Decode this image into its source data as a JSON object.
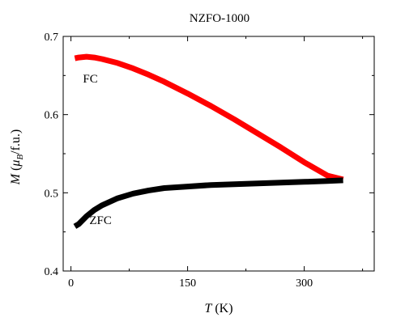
{
  "chart_data": {
    "type": "line",
    "title": "NZFO-1000",
    "xlabel": {
      "symbol": "T",
      "unit": " (K)"
    },
    "ylabel": {
      "symbol": "M",
      "open": " (",
      "mu": "μ",
      "sub": "B",
      "unit": "/f.u.)"
    },
    "xlim": [
      -10,
      390
    ],
    "ylim": [
      0.4,
      0.7
    ],
    "xticks": [
      0,
      150,
      300
    ],
    "yticks": [
      0.4,
      0.5,
      0.6,
      0.7
    ],
    "grid": false,
    "annotations": [
      {
        "text": "FC",
        "x": 25,
        "y": 0.641
      },
      {
        "text": "ZFC",
        "x": 38,
        "y": 0.46
      }
    ],
    "series": [
      {
        "name": "FC",
        "color": "#ff0000",
        "x": [
          5,
          10,
          20,
          30,
          40,
          60,
          80,
          100,
          120,
          150,
          180,
          210,
          240,
          270,
          300,
          330,
          350
        ],
        "y": [
          0.672,
          0.673,
          0.674,
          0.673,
          0.671,
          0.666,
          0.659,
          0.651,
          0.642,
          0.627,
          0.611,
          0.594,
          0.576,
          0.558,
          0.539,
          0.522,
          0.517
        ]
      },
      {
        "name": "ZFC",
        "color": "#000000",
        "x": [
          5,
          10,
          20,
          30,
          40,
          60,
          80,
          100,
          120,
          150,
          180,
          210,
          240,
          270,
          300,
          330,
          350
        ],
        "y": [
          0.457,
          0.46,
          0.47,
          0.478,
          0.484,
          0.493,
          0.499,
          0.503,
          0.506,
          0.508,
          0.51,
          0.511,
          0.512,
          0.513,
          0.514,
          0.515,
          0.516
        ]
      }
    ]
  }
}
